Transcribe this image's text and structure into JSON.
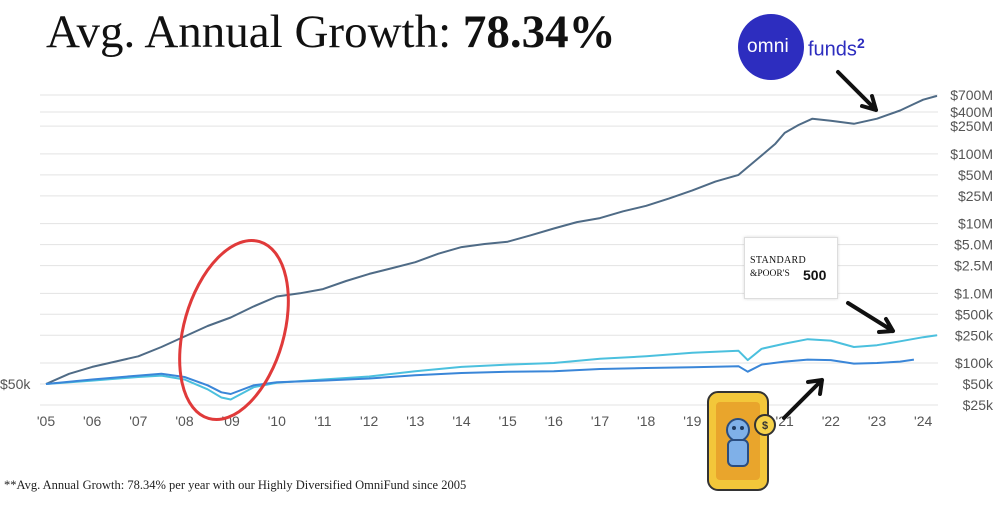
{
  "header": {
    "title_prefix": "Avg. Annual Growth: ",
    "title_value": "78.34%"
  },
  "footnote": "**Avg. Annual Growth: 78.34% per year with our Highly Diversified OmniFund since 2005",
  "logos": {
    "omnifunds": {
      "part1": "omni",
      "part2": "funds",
      "superscript": "2",
      "color": "#2d2dbf"
    },
    "sp500": {
      "line1": "STANDARD",
      "line2": "&POOR'S",
      "number": "500"
    }
  },
  "chart_data": {
    "type": "line",
    "y_scale": "log",
    "ylim": [
      25000,
      700000000
    ],
    "xlim": [
      2005,
      2024.3
    ],
    "start_label": "$50k",
    "x_ticks": [
      {
        "value": 2005,
        "label": "'05"
      },
      {
        "value": 2006,
        "label": "'06"
      },
      {
        "value": 2007,
        "label": "'07"
      },
      {
        "value": 2008,
        "label": "'08"
      },
      {
        "value": 2009,
        "label": "'09"
      },
      {
        "value": 2010,
        "label": "'10"
      },
      {
        "value": 2011,
        "label": "'11"
      },
      {
        "value": 2012,
        "label": "'12"
      },
      {
        "value": 2013,
        "label": "'13"
      },
      {
        "value": 2014,
        "label": "'14"
      },
      {
        "value": 2015,
        "label": "'15"
      },
      {
        "value": 2016,
        "label": "'16"
      },
      {
        "value": 2017,
        "label": "'17"
      },
      {
        "value": 2018,
        "label": "'18"
      },
      {
        "value": 2019,
        "label": "'19"
      },
      {
        "value": 2020,
        "label": "'20"
      },
      {
        "value": 2021,
        "label": "'21"
      },
      {
        "value": 2022,
        "label": "'22"
      },
      {
        "value": 2023,
        "label": "'23"
      },
      {
        "value": 2024,
        "label": "'24"
      }
    ],
    "y_ticks": [
      {
        "value": 700000000,
        "label": "$700M"
      },
      {
        "value": 400000000,
        "label": "$400M"
      },
      {
        "value": 250000000,
        "label": "$250M"
      },
      {
        "value": 100000000,
        "label": "$100M"
      },
      {
        "value": 50000000,
        "label": "$50M"
      },
      {
        "value": 25000000,
        "label": "$25M"
      },
      {
        "value": 10000000,
        "label": "$10M"
      },
      {
        "value": 5000000,
        "label": "$5.0M"
      },
      {
        "value": 2500000,
        "label": "$2.5M"
      },
      {
        "value": 1000000,
        "label": "$1.0M"
      },
      {
        "value": 500000,
        "label": "$500k"
      },
      {
        "value": 250000,
        "label": "$250k"
      },
      {
        "value": 100000,
        "label": "$100k"
      },
      {
        "value": 50000,
        "label": "$50k"
      },
      {
        "value": 25000,
        "label": "$25k"
      }
    ],
    "grid": true,
    "series": [
      {
        "color": "#4f6b86",
        "points": [
          [
            2005.0,
            50000
          ],
          [
            2005.5,
            70000
          ],
          [
            2006.0,
            88000
          ],
          [
            2006.5,
            105000
          ],
          [
            2007.0,
            125000
          ],
          [
            2007.5,
            170000
          ],
          [
            2008.0,
            240000
          ],
          [
            2008.5,
            340000
          ],
          [
            2009.0,
            450000
          ],
          [
            2009.5,
            650000
          ],
          [
            2010.0,
            900000
          ],
          [
            2010.5,
            1000000
          ],
          [
            2011.0,
            1150000
          ],
          [
            2011.5,
            1500000
          ],
          [
            2012.0,
            1900000
          ],
          [
            2012.5,
            2300000
          ],
          [
            2013.0,
            2800000
          ],
          [
            2013.5,
            3700000
          ],
          [
            2014.0,
            4600000
          ],
          [
            2014.5,
            5100000
          ],
          [
            2015.0,
            5500000
          ],
          [
            2015.5,
            6800000
          ],
          [
            2016.0,
            8500000
          ],
          [
            2016.5,
            10500000
          ],
          [
            2017.0,
            12000000
          ],
          [
            2017.5,
            15000000
          ],
          [
            2018.0,
            18000000
          ],
          [
            2018.5,
            23000000
          ],
          [
            2019.0,
            30000000
          ],
          [
            2019.5,
            40000000
          ],
          [
            2020.0,
            50000000
          ],
          [
            2020.5,
            95000000
          ],
          [
            2020.8,
            140000000
          ],
          [
            2021.0,
            200000000
          ],
          [
            2021.3,
            260000000
          ],
          [
            2021.6,
            320000000
          ],
          [
            2022.0,
            300000000
          ],
          [
            2022.5,
            270000000
          ],
          [
            2023.0,
            320000000
          ],
          [
            2023.5,
            420000000
          ],
          [
            2023.8,
            520000000
          ],
          [
            2024.0,
            600000000
          ],
          [
            2024.3,
            680000000
          ]
        ]
      },
      {
        "color": "#4bc0de",
        "points": [
          [
            2005.0,
            50000
          ],
          [
            2006.0,
            56000
          ],
          [
            2007.0,
            63000
          ],
          [
            2007.5,
            66000
          ],
          [
            2008.0,
            58000
          ],
          [
            2008.5,
            42000
          ],
          [
            2008.8,
            32000
          ],
          [
            2009.0,
            30000
          ],
          [
            2009.5,
            45000
          ],
          [
            2010.0,
            52000
          ],
          [
            2011.0,
            58000
          ],
          [
            2012.0,
            64000
          ],
          [
            2013.0,
            76000
          ],
          [
            2014.0,
            88000
          ],
          [
            2015.0,
            95000
          ],
          [
            2016.0,
            100000
          ],
          [
            2017.0,
            115000
          ],
          [
            2018.0,
            125000
          ],
          [
            2019.0,
            140000
          ],
          [
            2020.0,
            150000
          ],
          [
            2020.2,
            110000
          ],
          [
            2020.5,
            160000
          ],
          [
            2021.0,
            190000
          ],
          [
            2021.5,
            220000
          ],
          [
            2022.0,
            210000
          ],
          [
            2022.5,
            170000
          ],
          [
            2023.0,
            180000
          ],
          [
            2023.5,
            205000
          ],
          [
            2024.0,
            235000
          ],
          [
            2024.3,
            250000
          ]
        ]
      },
      {
        "color": "#3a86d8",
        "points": [
          [
            2005.0,
            50000
          ],
          [
            2006.0,
            58000
          ],
          [
            2007.0,
            66000
          ],
          [
            2007.5,
            70000
          ],
          [
            2008.0,
            63000
          ],
          [
            2008.5,
            48000
          ],
          [
            2008.8,
            38000
          ],
          [
            2009.0,
            36000
          ],
          [
            2009.5,
            48000
          ],
          [
            2010.0,
            53000
          ],
          [
            2011.0,
            56000
          ],
          [
            2012.0,
            60000
          ],
          [
            2013.0,
            67000
          ],
          [
            2014.0,
            72000
          ],
          [
            2015.0,
            75000
          ],
          [
            2016.0,
            76000
          ],
          [
            2017.0,
            82000
          ],
          [
            2018.0,
            85000
          ],
          [
            2019.0,
            87000
          ],
          [
            2020.0,
            90000
          ],
          [
            2020.2,
            75000
          ],
          [
            2020.5,
            95000
          ],
          [
            2021.0,
            105000
          ],
          [
            2021.5,
            112000
          ],
          [
            2022.0,
            110000
          ],
          [
            2022.5,
            98000
          ],
          [
            2023.0,
            100000
          ],
          [
            2023.5,
            105000
          ],
          [
            2023.8,
            112000
          ]
        ]
      }
    ]
  }
}
